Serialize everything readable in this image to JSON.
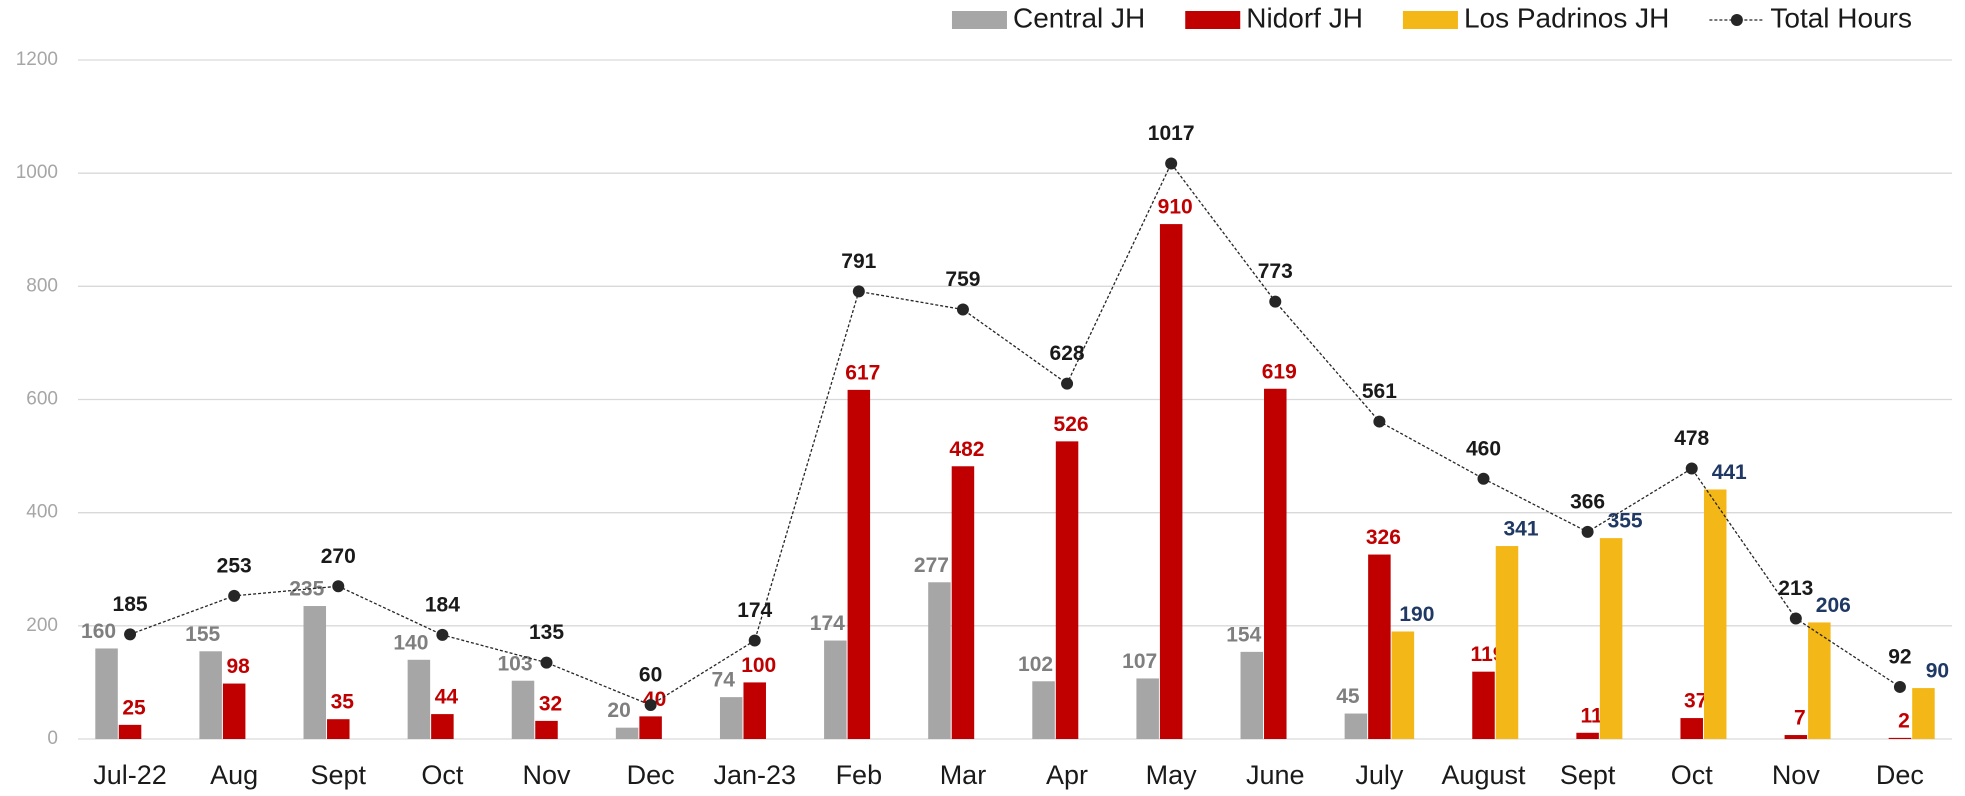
{
  "chart_data": {
    "type": "bar",
    "categories": [
      "Jul-22",
      "Aug",
      "Sept",
      "Oct",
      "Nov",
      "Dec",
      "Jan-23",
      "Feb",
      "Mar",
      "Apr",
      "May",
      "June",
      "July",
      "August",
      "Sept",
      "Oct",
      "Nov",
      "Dec"
    ],
    "series": [
      {
        "name": "Central JH",
        "type": "bar",
        "color": "#a6a6a6",
        "label_color": "#7f7f7f",
        "values": [
          160,
          155,
          235,
          140,
          103,
          20,
          74,
          174,
          277,
          102,
          107,
          154,
          45,
          null,
          null,
          null,
          null,
          null
        ]
      },
      {
        "name": "Nidorf JH",
        "type": "bar",
        "color": "#c00000",
        "label_color": "#c00000",
        "values": [
          25,
          98,
          35,
          44,
          32,
          40,
          100,
          617,
          482,
          526,
          910,
          619,
          326,
          119,
          11,
          37,
          7,
          2
        ]
      },
      {
        "name": "Los Padrinos JH",
        "type": "bar",
        "color": "#f4b718",
        "label_color": "#1f3864",
        "values": [
          null,
          null,
          null,
          null,
          null,
          null,
          null,
          null,
          null,
          null,
          null,
          null,
          190,
          341,
          355,
          441,
          206,
          90
        ]
      },
      {
        "name": "Total Hours",
        "type": "line",
        "color": "#262626",
        "label_color": "#1a1a1a",
        "values": [
          185,
          253,
          270,
          184,
          135,
          60,
          174,
          791,
          759,
          628,
          1017,
          773,
          561,
          460,
          366,
          478,
          213,
          92
        ]
      }
    ],
    "ylim": [
      0,
      1200
    ],
    "yticks": [
      0,
      200,
      400,
      600,
      800,
      1000,
      1200
    ],
    "grid": true,
    "legend": "top-right"
  }
}
